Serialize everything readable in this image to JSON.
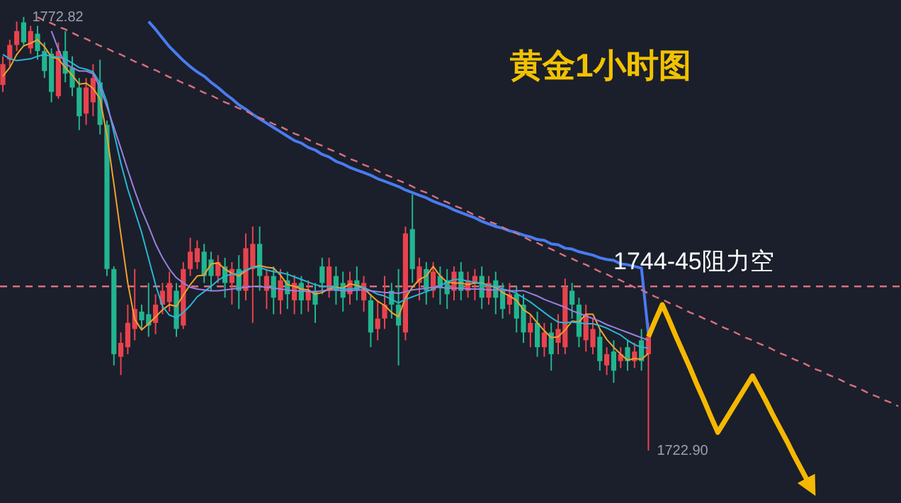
{
  "chart_data": {
    "type": "candlestick",
    "title": "黄金1小时图",
    "categories": [
      null,
      null,
      null,
      null,
      null,
      null,
      null,
      null,
      null,
      null,
      null,
      null,
      null,
      null,
      null,
      null,
      null,
      null,
      null,
      null,
      null,
      null,
      null,
      null,
      null,
      null,
      null,
      null,
      null,
      null,
      null,
      null,
      null,
      null,
      null,
      null,
      null,
      null,
      null,
      null,
      null,
      null,
      null,
      null,
      null,
      null,
      null,
      null,
      null,
      null,
      null,
      null,
      null,
      null,
      null,
      null,
      null,
      null,
      null,
      null,
      null,
      null,
      null,
      null,
      null,
      null,
      null,
      null,
      null,
      null,
      null,
      null,
      null,
      null,
      null,
      null,
      null,
      null,
      null,
      null,
      null,
      null,
      null,
      null,
      null,
      null,
      null,
      null,
      null,
      null,
      null,
      null,
      null,
      null,
      null,
      null,
      null,
      null,
      null,
      null,
      null,
      null,
      null,
      null,
      null,
      null,
      null,
      null,
      null,
      null,
      null,
      null,
      null,
      null,
      null,
      null,
      null,
      null,
      null,
      null,
      null,
      null,
      null,
      null,
      null,
      null,
      null,
      null,
      null,
      null
    ],
    "ohlc": [
      [
        1765.0,
        1768.3,
        1764.2,
        1767.4
      ],
      [
        1767.9,
        1770.2,
        1767.0,
        1769.6
      ],
      [
        1769.6,
        1772.3,
        1768.9,
        1771.2
      ],
      [
        1772.2,
        1772.82,
        1769.6,
        1769.9
      ],
      [
        1769.2,
        1771.8,
        1768.6,
        1771.2
      ],
      [
        1770.9,
        1771.8,
        1767.9,
        1768.9
      ],
      [
        1768.9,
        1769.9,
        1765.8,
        1766.6
      ],
      [
        1768.6,
        1769.2,
        1763.0,
        1764.2
      ],
      [
        1763.7,
        1769.9,
        1763.4,
        1768.9
      ],
      [
        1768.9,
        1771.2,
        1765.3,
        1766.3
      ],
      [
        1767.0,
        1768.3,
        1763.7,
        1764.7
      ],
      [
        1764.7,
        1765.8,
        1759.8,
        1761.4
      ],
      [
        1761.7,
        1765.8,
        1760.4,
        1764.7
      ],
      [
        1763.0,
        1767.4,
        1761.4,
        1765.8
      ],
      [
        1765.3,
        1767.9,
        1759.3,
        1760.4
      ],
      [
        1760.4,
        1760.9,
        1743.0,
        1743.8
      ],
      [
        1743.8,
        1744.1,
        1732.7,
        1734.0
      ],
      [
        1733.7,
        1736.5,
        1731.6,
        1735.3
      ],
      [
        1734.8,
        1739.7,
        1734.0,
        1737.6
      ],
      [
        1736.9,
        1743.8,
        1735.6,
        1739.2
      ],
      [
        1738.9,
        1739.7,
        1736.9,
        1737.9
      ],
      [
        1738.6,
        1742.2,
        1736.0,
        1737.3
      ],
      [
        1737.6,
        1740.9,
        1736.3,
        1739.7
      ],
      [
        1739.7,
        1742.2,
        1738.6,
        1741.3
      ],
      [
        1740.0,
        1743.5,
        1738.9,
        1742.2
      ],
      [
        1741.3,
        1742.2,
        1736.0,
        1736.9
      ],
      [
        1737.3,
        1744.6,
        1736.9,
        1743.8
      ],
      [
        1743.8,
        1747.4,
        1743.0,
        1745.8
      ],
      [
        1744.6,
        1747.1,
        1743.8,
        1746.2
      ],
      [
        1745.8,
        1746.7,
        1742.2,
        1743.0
      ],
      [
        1744.9,
        1745.8,
        1741.3,
        1743.0
      ],
      [
        1743.0,
        1745.4,
        1742.2,
        1744.6
      ],
      [
        1744.1,
        1745.1,
        1740.5,
        1742.2
      ],
      [
        1742.2,
        1744.6,
        1739.7,
        1743.8
      ],
      [
        1743.8,
        1745.4,
        1739.2,
        1741.3
      ],
      [
        1741.3,
        1747.9,
        1740.2,
        1746.2
      ],
      [
        1743.8,
        1748.7,
        1737.6,
        1746.7
      ],
      [
        1746.7,
        1748.7,
        1741.3,
        1743.0
      ],
      [
        1741.3,
        1743.8,
        1739.2,
        1743.0
      ],
      [
        1743.0,
        1744.1,
        1738.6,
        1740.5
      ],
      [
        1740.2,
        1743.8,
        1738.6,
        1742.5
      ],
      [
        1742.5,
        1743.5,
        1739.2,
        1740.9
      ],
      [
        1740.2,
        1743.1,
        1738.6,
        1742.2
      ],
      [
        1742.2,
        1743.0,
        1738.6,
        1740.2
      ],
      [
        1740.2,
        1742.5,
        1738.9,
        1741.3
      ],
      [
        1741.3,
        1742.2,
        1737.6,
        1739.7
      ],
      [
        1744.1,
        1745.1,
        1740.9,
        1742.2
      ],
      [
        1741.3,
        1745.1,
        1740.5,
        1744.1
      ],
      [
        1743.0,
        1744.1,
        1739.7,
        1741.3
      ],
      [
        1742.2,
        1743.5,
        1738.9,
        1740.5
      ],
      [
        1740.9,
        1743.5,
        1739.7,
        1742.5
      ],
      [
        1742.5,
        1744.1,
        1740.2,
        1741.3
      ],
      [
        1740.2,
        1743.0,
        1738.9,
        1742.2
      ],
      [
        1740.2,
        1740.9,
        1734.8,
        1736.5
      ],
      [
        1736.9,
        1740.2,
        1735.6,
        1738.1
      ],
      [
        1738.1,
        1743.0,
        1736.9,
        1739.7
      ],
      [
        1741.3,
        1742.2,
        1738.1,
        1739.7
      ],
      [
        1739.7,
        1743.8,
        1732.7,
        1737.3
      ],
      [
        1736.5,
        1748.7,
        1735.6,
        1747.9
      ],
      [
        1748.4,
        1752.4,
        1742.2,
        1743.8
      ],
      [
        1742.2,
        1745.1,
        1740.2,
        1744.1
      ],
      [
        1743.8,
        1744.6,
        1739.7,
        1741.3
      ],
      [
        1741.3,
        1744.6,
        1740.5,
        1743.5
      ],
      [
        1743.0,
        1744.1,
        1739.7,
        1741.7
      ],
      [
        1742.5,
        1743.8,
        1739.2,
        1740.9
      ],
      [
        1741.3,
        1744.1,
        1740.2,
        1743.5
      ],
      [
        1743.5,
        1744.6,
        1740.2,
        1741.3
      ],
      [
        1741.3,
        1743.5,
        1740.5,
        1742.5
      ],
      [
        1742.2,
        1743.8,
        1740.2,
        1743.0
      ],
      [
        1743.0,
        1744.1,
        1739.2,
        1740.5
      ],
      [
        1740.5,
        1743.0,
        1739.7,
        1742.2
      ],
      [
        1742.5,
        1743.5,
        1738.6,
        1740.5
      ],
      [
        1741.3,
        1742.2,
        1738.1,
        1739.2
      ],
      [
        1739.7,
        1742.2,
        1738.6,
        1740.9
      ],
      [
        1740.9,
        1741.8,
        1736.5,
        1738.1
      ],
      [
        1739.7,
        1740.9,
        1735.3,
        1736.5
      ],
      [
        1736.5,
        1738.6,
        1734.8,
        1737.6
      ],
      [
        1737.6,
        1738.9,
        1733.7,
        1734.8
      ],
      [
        1734.8,
        1737.6,
        1733.7,
        1736.5
      ],
      [
        1736.5,
        1737.6,
        1732.1,
        1734.0
      ],
      [
        1735.3,
        1738.6,
        1734.0,
        1736.9
      ],
      [
        1734.8,
        1742.7,
        1734.0,
        1741.7
      ],
      [
        1741.3,
        1742.2,
        1738.1,
        1739.7
      ],
      [
        1739.7,
        1740.5,
        1734.8,
        1736.0
      ],
      [
        1735.6,
        1739.7,
        1734.3,
        1738.6
      ],
      [
        1734.8,
        1738.1,
        1734.0,
        1736.9
      ],
      [
        1736.0,
        1736.9,
        1732.1,
        1733.2
      ],
      [
        1732.7,
        1734.8,
        1731.6,
        1734.0
      ],
      [
        1734.3,
        1735.6,
        1730.7,
        1732.1
      ],
      [
        1733.2,
        1734.8,
        1732.4,
        1734.0
      ],
      [
        1734.8,
        1735.6,
        1732.1,
        1733.2
      ],
      [
        1733.2,
        1735.3,
        1732.4,
        1734.3
      ],
      [
        1735.6,
        1736.9,
        1732.1,
        1733.2
      ],
      [
        1734.0,
        1737.6,
        1722.9,
        1736.0
      ],
      null,
      null,
      null,
      null,
      null,
      null,
      null,
      null,
      null,
      null,
      null,
      null,
      null,
      null,
      null,
      null,
      null,
      null,
      null,
      null,
      null,
      null,
      null,
      null,
      null,
      null,
      null,
      null,
      null,
      null,
      null,
      null,
      null,
      null,
      null,
      null
    ],
    "colors": [
      "#e8434e",
      "#e8434e",
      "#e8434e",
      "#22b58f",
      "#e8434e",
      "#22b58f",
      "#22b58f",
      "#22b58f",
      "#e8434e",
      "#22b58f",
      "#22b58f",
      "#22b58f",
      "#e8434e",
      "#e8434e",
      "#22b58f",
      "#22b58f",
      "#22b58f",
      "#e8434e",
      "#e8434e",
      "#e8434e",
      "#22b58f",
      "#22b58f",
      "#e8434e",
      "#e8434e",
      "#e8434e",
      "#22b58f",
      "#e8434e",
      "#e8434e",
      "#e8434e",
      "#22b58f",
      "#22b58f",
      "#e8434e",
      "#22b58f",
      "#e8434e",
      "#22b58f",
      "#e8434e",
      "#e8434e",
      "#22b58f",
      "#e8434e",
      "#22b58f",
      "#e8434e",
      "#22b58f",
      "#e8434e",
      "#22b58f",
      "#e8434e",
      "#22b58f",
      "#22b58f",
      "#e8434e",
      "#22b58f",
      "#22b58f",
      "#e8434e",
      "#22b58f",
      "#e8434e",
      "#22b58f",
      "#e8434e",
      "#e8434e",
      "#22b58f",
      "#22b58f",
      "#e8434e",
      "#22b58f",
      "#e8434e",
      "#22b58f",
      "#e8434e",
      "#22b58f",
      "#22b58f",
      "#e8434e",
      "#22b58f",
      "#e8434e",
      "#e8434e",
      "#22b58f",
      "#e8434e",
      "#22b58f",
      "#22b58f",
      "#e8434e",
      "#22b58f",
      "#22b58f",
      "#e8434e",
      "#22b58f",
      "#e8434e",
      "#22b58f",
      "#e8434e",
      "#e8434e",
      "#22b58f",
      "#22b58f",
      "#e8434e",
      "#e8434e",
      "#22b58f",
      "#e8434e",
      "#22b58f",
      "#e8434e",
      "#22b58f",
      "#e8434e",
      "#22b58f",
      "#e8434e",
      null,
      null,
      null,
      null,
      null,
      null,
      null,
      null,
      null,
      null,
      null,
      null,
      null,
      null,
      null,
      null,
      null,
      null,
      null,
      null,
      null,
      null,
      null,
      null,
      null,
      null,
      null,
      null,
      null,
      null,
      null,
      null,
      null,
      null,
      null,
      null
    ],
    "series": [
      {
        "type": "line",
        "color": "#f0a22e",
        "values": [
          1766.0,
          1767.0,
          1768.5,
          1769.5,
          1769.8,
          1770.2,
          1769.4,
          1768.2,
          1768.0,
          1767.0,
          1766.1,
          1765.1,
          1765.2,
          1764.6,
          1763.4,
          1759.2,
          1753.6,
          1747.8,
          1742.2,
          1738.0,
          1736.8,
          1737.5,
          1738.3,
          1739.1,
          1739.7,
          1739.5,
          1740.8,
          1742.0,
          1743.0,
          1743.1,
          1744.4,
          1744.5,
          1743.8,
          1743.3,
          1743.0,
          1743.6,
          1744.0,
          1744.2,
          1744.0,
          1743.9,
          1743.1,
          1742.0,
          1741.8,
          1741.5,
          1741.4,
          1740.9,
          1741.1,
          1741.5,
          1741.7,
          1741.6,
          1742.1,
          1741.9,
          1741.6,
          1740.8,
          1740.1,
          1739.6,
          1738.8,
          1738.3,
          1740.5,
          1741.7,
          1742.6,
          1743.0,
          1744.1,
          1743.0,
          1742.3,
          1742.2,
          1742.2,
          1742.0,
          1742.2,
          1742.2,
          1741.9,
          1741.7,
          1741.1,
          1740.7,
          1740.2,
          1739.1,
          1738.6,
          1737.6,
          1736.7,
          1735.9,
          1736.0,
          1736.8,
          1737.8,
          1737.7,
          1738.6,
          1738.6,
          1736.9,
          1735.7,
          1734.8,
          1734.0,
          1733.3,
          1733.5,
          1733.4,
          1734.1,
          null,
          null,
          null,
          null,
          null,
          null,
          null,
          null,
          null,
          null,
          null,
          null,
          null,
          null,
          null,
          null,
          null,
          null,
          null,
          null,
          null,
          null,
          null,
          null,
          null,
          null,
          null,
          null,
          null,
          null,
          null,
          null,
          null,
          null,
          null,
          null
        ]
      },
      {
        "type": "line",
        "color": "#27b7d6",
        "values": [
          1768.5,
          1768.0,
          1767.8,
          1767.9,
          1768.0,
          1768.3,
          1768.5,
          1768.3,
          1768.2,
          1768.0,
          1767.5,
          1767.0,
          1766.8,
          1766.5,
          1765.2,
          1763.0,
          1759.5,
          1756.0,
          1753.0,
          1750.5,
          1748.0,
          1745.0,
          1742.0,
          1739.5,
          1738.5,
          1738.2,
          1738.8,
          1739.6,
          1740.6,
          1741.2,
          1741.8,
          1742.5,
          1743.0,
          1743.2,
          1743.3,
          1743.7,
          1744.0,
          1744.0,
          1743.7,
          1743.5,
          1743.4,
          1743.2,
          1742.9,
          1742.6,
          1742.3,
          1742.0,
          1741.8,
          1741.8,
          1741.6,
          1741.5,
          1741.5,
          1741.6,
          1741.7,
          1741.3,
          1740.9,
          1740.7,
          1740.3,
          1739.9,
          1740.3,
          1740.6,
          1740.9,
          1741.2,
          1741.5,
          1741.9,
          1742.3,
          1742.6,
          1742.6,
          1742.4,
          1742.3,
          1742.1,
          1741.9,
          1741.8,
          1741.5,
          1741.3,
          1741.0,
          1740.5,
          1740.0,
          1739.4,
          1738.8,
          1738.2,
          1737.7,
          1737.6,
          1737.7,
          1737.6,
          1737.5,
          1737.5,
          1737.3,
          1737.0,
          1736.6,
          1736.2,
          1735.6,
          1735.1,
          1734.8,
          1734.7,
          null,
          null,
          null,
          null,
          null,
          null,
          null,
          null,
          null,
          null,
          null,
          null,
          null,
          null,
          null,
          null,
          null,
          null,
          null,
          null,
          null,
          null,
          null,
          null,
          null,
          null,
          null,
          null,
          null,
          null,
          null,
          null,
          null,
          null,
          null,
          null
        ]
      },
      {
        "type": "line",
        "color": "#9a80e0",
        "values": [
          null,
          null,
          null,
          null,
          null,
          null,
          null,
          1771.2,
          1769.1,
          1767.4,
          1767.0,
          1766.6,
          1766.6,
          1766.3,
          1764.7,
          1762.5,
          1760.1,
          1757.7,
          1755.2,
          1752.8,
          1750.6,
          1748.7,
          1746.7,
          1745.1,
          1743.8,
          1742.8,
          1742.2,
          1741.7,
          1741.5,
          1741.4,
          1741.3,
          1741.3,
          1741.4,
          1741.5,
          1741.6,
          1741.7,
          1741.8,
          1741.8,
          1741.7,
          1741.6,
          1741.5,
          1741.4,
          1741.3,
          1741.3,
          1741.2,
          1741.2,
          1741.3,
          1741.4,
          1741.4,
          1741.3,
          1741.3,
          1741.4,
          1741.4,
          1741.3,
          1741.2,
          1741.1,
          1741.1,
          1741.0,
          1741.2,
          1741.4,
          1741.5,
          1741.6,
          1741.7,
          1741.7,
          1741.6,
          1741.6,
          1741.6,
          1741.5,
          1741.5,
          1741.5,
          1741.4,
          1741.4,
          1741.4,
          1741.3,
          1741.3,
          1741.3,
          1741.0,
          1740.7,
          1740.3,
          1740.0,
          1739.7,
          1739.4,
          1739.0,
          1738.7,
          1738.4,
          1738.1,
          1737.8,
          1737.4,
          1737.1,
          1736.8,
          1736.5,
          1736.2,
          1735.9,
          1735.6,
          null,
          null,
          null,
          null,
          null,
          null,
          null,
          null,
          null,
          null,
          null,
          null,
          null,
          null,
          null,
          null,
          null,
          null,
          null,
          null,
          null,
          null,
          null,
          null,
          null,
          null,
          null,
          null,
          null,
          null,
          null,
          null,
          null,
          null,
          null,
          null
        ]
      },
      {
        "type": "line",
        "color": "#4a7bf0",
        "values": [
          null,
          null,
          null,
          null,
          null,
          null,
          null,
          null,
          null,
          null,
          null,
          null,
          null,
          null,
          null,
          null,
          null,
          null,
          null,
          null,
          null,
          1772.3,
          1771.4,
          1770.4,
          1769.4,
          1768.6,
          1767.8,
          1767.1,
          1766.5,
          1766.0,
          1765.3,
          1764.7,
          1764.0,
          1763.4,
          1762.7,
          1762.2,
          1761.6,
          1761.1,
          1760.6,
          1760.1,
          1759.6,
          1759.1,
          1758.6,
          1758.3,
          1757.8,
          1757.5,
          1757.0,
          1756.7,
          1756.2,
          1755.9,
          1755.5,
          1755.2,
          1754.9,
          1754.6,
          1754.2,
          1753.9,
          1753.6,
          1753.3,
          1752.9,
          1752.6,
          1752.3,
          1752.0,
          1751.6,
          1751.3,
          1751.0,
          1750.6,
          1750.3,
          1750.0,
          1749.7,
          1749.3,
          1749.0,
          1748.7,
          1748.5,
          1748.2,
          1748.0,
          1747.7,
          1747.5,
          1747.2,
          1747.1,
          1746.7,
          1746.6,
          1746.2,
          1746.1,
          1745.8,
          1745.6,
          1745.4,
          1745.1,
          1744.9,
          1744.8,
          1744.4,
          1744.3,
          1744.1,
          1743.9,
          1736.3,
          null,
          null,
          null,
          null,
          null,
          null,
          null,
          null,
          null,
          null,
          null,
          null,
          null,
          null,
          null,
          null,
          null,
          null,
          null,
          null,
          null,
          null,
          null,
          null,
          null,
          null,
          null,
          null,
          null,
          null,
          null,
          null,
          null,
          null,
          null,
          null
        ]
      },
      {
        "type": "line",
        "color": "#d9707e",
        "line_style": "dashed",
        "values": [
          null,
          null,
          null,
          null,
          null,
          1772.8,
          1772.4,
          1772.1,
          1771.7,
          1771.4,
          1771.0,
          1770.6,
          1770.3,
          1769.9,
          1769.5,
          1769.2,
          1768.8,
          1768.5,
          1768.1,
          1767.7,
          1767.4,
          1767.0,
          1766.7,
          1766.3,
          1765.9,
          1765.6,
          1765.2,
          1764.9,
          1764.5,
          1764.1,
          1763.8,
          1763.4,
          1763.0,
          1762.7,
          1762.3,
          1762.0,
          1761.6,
          1761.2,
          1760.9,
          1760.5,
          1760.2,
          1759.8,
          1759.4,
          1759.1,
          1758.7,
          1758.3,
          1758.0,
          1757.6,
          1757.3,
          1756.9,
          1756.5,
          1756.2,
          1755.8,
          1755.5,
          1755.1,
          1754.7,
          1754.4,
          1754.0,
          1753.7,
          1753.3,
          1752.9,
          1752.6,
          1752.2,
          1751.8,
          1751.5,
          1751.1,
          1750.8,
          1750.4,
          1750.0,
          1749.7,
          1749.3,
          1749.0,
          1748.6,
          1748.2,
          1747.9,
          1747.5,
          1747.1,
          1746.8,
          1746.4,
          1746.1,
          1745.7,
          1745.3,
          1745.0,
          1744.6,
          1744.3,
          1743.9,
          1743.5,
          1743.2,
          1742.8,
          1742.5,
          1742.1,
          1741.7,
          1741.4,
          1741.0,
          1740.6,
          1740.3,
          1739.9,
          1739.6,
          1739.2,
          1738.8,
          1738.5,
          1738.1,
          1737.8,
          1737.4,
          1737.0,
          1736.7,
          1736.3,
          1735.9,
          1735.6,
          1735.2,
          1734.9,
          1734.5,
          1734.1,
          1733.8,
          1733.4,
          1733.1,
          1732.7,
          1732.3,
          1732.0,
          1731.6,
          1731.3,
          1730.9,
          1730.5,
          1730.2,
          1729.8,
          1729.4,
          1729.1,
          1728.7,
          1728.4,
          1728.0
        ]
      },
      {
        "type": "line",
        "color": "#f5b800",
        "values": [
          null,
          null,
          null,
          null,
          null,
          null,
          null,
          null,
          null,
          null,
          null,
          null,
          null,
          null,
          null,
          null,
          null,
          null,
          null,
          null,
          null,
          null,
          null,
          null,
          null,
          null,
          null,
          null,
          null,
          null,
          null,
          null,
          null,
          null,
          null,
          null,
          null,
          null,
          null,
          null,
          null,
          null,
          null,
          null,
          null,
          null,
          null,
          null,
          null,
          null,
          null,
          null,
          null,
          null,
          null,
          null,
          null,
          null,
          null,
          null,
          null,
          null,
          null,
          null,
          null,
          null,
          null,
          null,
          null,
          null,
          null,
          null,
          null,
          null,
          null,
          null,
          null,
          null,
          null,
          null,
          null,
          null,
          null,
          null,
          null,
          null,
          null,
          null,
          null,
          null,
          null,
          null,
          null,
          1736.0,
          1737.9,
          1739.7,
          1737.9,
          1736.0,
          1734.2,
          1732.4,
          1730.5,
          1728.7,
          1726.8,
          1725.0,
          1726.3,
          1727.6,
          1728.9,
          1730.2,
          1731.5,
          1730.0,
          1728.5,
          1726.9,
          1725.4,
          1723.9,
          1722.3,
          1720.8,
          1719.3,
          null,
          null,
          null,
          null,
          null,
          null,
          null,
          null,
          null,
          null,
          null,
          null,
          null
        ]
      }
    ],
    "ref_lines": [
      {
        "axis": "y",
        "value": 1741.8,
        "color": "#d9707e",
        "line_style": "dashed"
      }
    ],
    "annotations": [
      "1772.82",
      "1722.90",
      "1744-45阻力空"
    ]
  }
}
